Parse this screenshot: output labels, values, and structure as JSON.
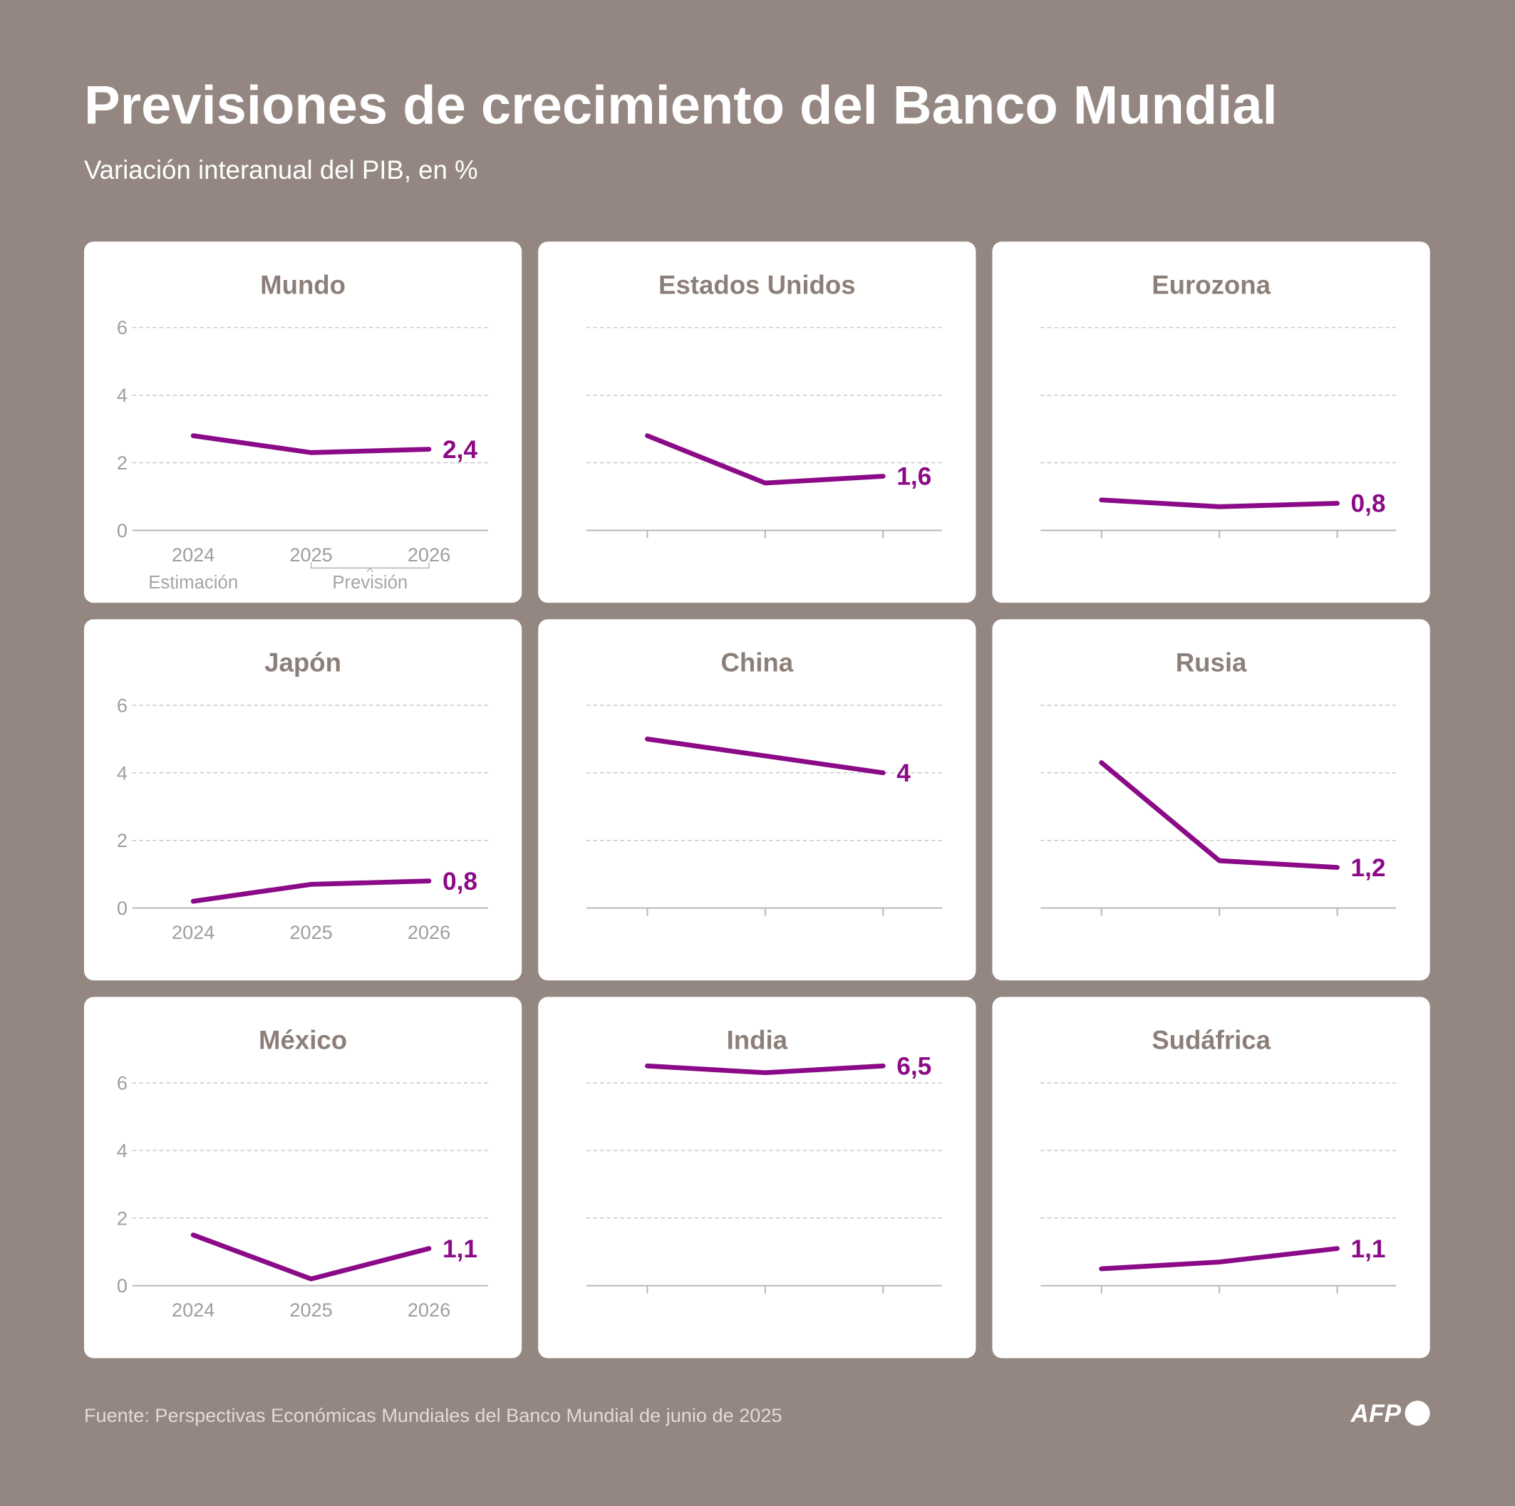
{
  "title": "Previsiones de crecimiento del Banco Mundial",
  "subtitle": "Variación interanual del PIB, en %",
  "source": "Fuente: Perspectivas Económicas Mundiales del Banco Mundial de junio de 2025",
  "logo": "AFP",
  "chart_data": [
    {
      "type": "line",
      "title": "Mundo",
      "categories": [
        "2024",
        "2025",
        "2026"
      ],
      "series": [
        {
          "color": "#8b0a87",
          "values": [
            2.8,
            2.3,
            2.4
          ],
          "value_labels": [
            null,
            null,
            "2,4"
          ]
        }
      ],
      "ylim": [
        0,
        6
      ],
      "yticks": [
        0,
        2,
        4,
        6
      ],
      "ytick_labels": true,
      "grid": true,
      "annotations": [
        "Estimación",
        "Previsión"
      ]
    },
    {
      "type": "line",
      "title": "Estados Unidos",
      "categories": [
        null,
        null,
        null
      ],
      "series": [
        {
          "color": "#8b0a87",
          "values": [
            2.8,
            1.4,
            1.6
          ],
          "value_labels": [
            null,
            null,
            "1,6"
          ]
        }
      ],
      "ylim": [
        0,
        6
      ],
      "yticks": [
        0,
        2,
        4,
        6
      ],
      "ytick_labels": false,
      "grid": true
    },
    {
      "type": "line",
      "title": "Eurozona",
      "categories": [
        null,
        null,
        null
      ],
      "series": [
        {
          "color": "#8b0a87",
          "values": [
            0.9,
            0.7,
            0.8
          ],
          "value_labels": [
            null,
            null,
            "0,8"
          ]
        }
      ],
      "ylim": [
        0,
        6
      ],
      "yticks": [
        0,
        2,
        4,
        6
      ],
      "ytick_labels": false,
      "grid": true
    },
    {
      "type": "line",
      "title": "Japón",
      "categories": [
        "2024",
        "2025",
        "2026"
      ],
      "series": [
        {
          "color": "#8b0a87",
          "values": [
            0.2,
            0.7,
            0.8
          ],
          "value_labels": [
            null,
            null,
            "0,8"
          ]
        }
      ],
      "ylim": [
        0,
        6
      ],
      "yticks": [
        0,
        2,
        4,
        6
      ],
      "ytick_labels": true,
      "grid": true
    },
    {
      "type": "line",
      "title": "China",
      "categories": [
        null,
        null,
        null
      ],
      "series": [
        {
          "color": "#8b0a87",
          "values": [
            5.0,
            4.5,
            4.0
          ],
          "value_labels": [
            null,
            null,
            "4"
          ]
        }
      ],
      "ylim": [
        0,
        6
      ],
      "yticks": [
        0,
        2,
        4,
        6
      ],
      "ytick_labels": false,
      "grid": true
    },
    {
      "type": "line",
      "title": "Rusia",
      "categories": [
        null,
        null,
        null
      ],
      "series": [
        {
          "color": "#8b0a87",
          "values": [
            4.3,
            1.4,
            1.2
          ],
          "value_labels": [
            null,
            null,
            "1,2"
          ]
        }
      ],
      "ylim": [
        0,
        6
      ],
      "yticks": [
        0,
        2,
        4,
        6
      ],
      "ytick_labels": false,
      "grid": true
    },
    {
      "type": "line",
      "title": "México",
      "categories": [
        "2024",
        "2025",
        "2026"
      ],
      "series": [
        {
          "color": "#8b0a87",
          "values": [
            1.5,
            0.2,
            1.1
          ],
          "value_labels": [
            null,
            null,
            "1,1"
          ]
        }
      ],
      "ylim": [
        0,
        6
      ],
      "yticks": [
        0,
        2,
        4,
        6
      ],
      "ytick_labels": true,
      "grid": true
    },
    {
      "type": "line",
      "title": "India",
      "categories": [
        null,
        null,
        null
      ],
      "series": [
        {
          "color": "#8b0a87",
          "values": [
            6.5,
            6.3,
            6.5
          ],
          "value_labels": [
            null,
            null,
            "6,5"
          ]
        }
      ],
      "ylim": [
        0,
        6
      ],
      "yticks": [
        0,
        2,
        4,
        6
      ],
      "ytick_labels": false,
      "grid": true
    },
    {
      "type": "line",
      "title": "Sudáfrica",
      "categories": [
        null,
        null,
        null
      ],
      "series": [
        {
          "color": "#8b0a87",
          "values": [
            0.5,
            0.7,
            1.1
          ],
          "value_labels": [
            null,
            null,
            "1,1"
          ]
        }
      ],
      "ylim": [
        0,
        6
      ],
      "yticks": [
        0,
        2,
        4,
        6
      ],
      "ytick_labels": false,
      "grid": true
    }
  ]
}
